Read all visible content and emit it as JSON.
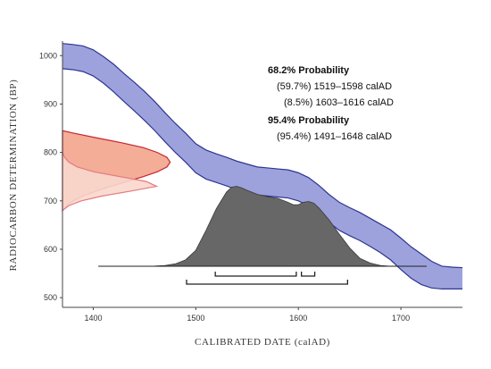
{
  "chart_data": {
    "type": "area",
    "title": "",
    "xlabel": "CALIBRATED DATE (calAD)",
    "ylabel": "RADIOCARBON DETERMINATION (BP)",
    "xlim": [
      1370,
      1760
    ],
    "ylim": [
      480,
      1030
    ],
    "x_ticks": [
      "1400",
      "1500",
      "1600",
      "1700"
    ],
    "y_ticks": [
      "500",
      "600",
      "700",
      "800",
      "900",
      "1000"
    ],
    "calibration_curve": {
      "x": [
        1370,
        1380,
        1390,
        1400,
        1410,
        1420,
        1430,
        1440,
        1450,
        1460,
        1470,
        1480,
        1490,
        1500,
        1510,
        1520,
        1530,
        1540,
        1550,
        1560,
        1570,
        1580,
        1590,
        1600,
        1610,
        1620,
        1630,
        1640,
        1650,
        1660,
        1670,
        1680,
        1690,
        1700,
        1710,
        1720,
        1730,
        1740,
        1750,
        1760
      ],
      "upper": [
        1025,
        1023,
        1020,
        1012,
        998,
        982,
        963,
        945,
        926,
        905,
        882,
        860,
        840,
        818,
        805,
        797,
        790,
        782,
        776,
        770,
        768,
        766,
        764,
        758,
        748,
        732,
        713,
        697,
        686,
        676,
        664,
        652,
        640,
        623,
        605,
        590,
        575,
        565,
        563,
        562
      ],
      "lower": [
        973,
        971,
        967,
        958,
        943,
        925,
        905,
        886,
        866,
        845,
        822,
        800,
        780,
        758,
        745,
        738,
        731,
        723,
        717,
        712,
        710,
        708,
        706,
        700,
        690,
        674,
        655,
        639,
        628,
        618,
        606,
        593,
        578,
        558,
        540,
        527,
        520,
        518,
        518,
        518
      ]
    },
    "radiocarbon_date": {
      "y": [
        680,
        690,
        700,
        710,
        720,
        730,
        740,
        750,
        760,
        770,
        780,
        790,
        800,
        810,
        820,
        830,
        840,
        845
      ],
      "density": [
        0.0,
        0.04,
        0.1,
        0.19,
        0.31,
        0.45,
        0.6,
        0.75,
        0.88,
        0.97,
        1.0,
        0.97,
        0.88,
        0.75,
        0.55,
        0.32,
        0.1,
        0.0
      ],
      "density2": [
        0.0,
        0.06,
        0.18,
        0.38,
        0.65,
        0.9,
        0.8,
        0.55,
        0.3,
        0.14,
        0.06,
        0.02,
        0.0,
        0.0,
        0.0,
        0.0,
        0.0,
        0.0
      ]
    },
    "calibrated_distribution": {
      "x": [
        1405,
        1440,
        1460,
        1470,
        1480,
        1490,
        1500,
        1510,
        1520,
        1530,
        1535,
        1540,
        1545,
        1550,
        1560,
        1570,
        1580,
        1590,
        1595,
        1600,
        1605,
        1610,
        1615,
        1620,
        1630,
        1640,
        1650,
        1660,
        1670,
        1680,
        1690,
        1725
      ],
      "density": [
        0.0,
        0.0,
        0.003,
        0.01,
        0.03,
        0.08,
        0.2,
        0.45,
        0.72,
        0.93,
        0.99,
        1.0,
        0.98,
        0.95,
        0.9,
        0.87,
        0.85,
        0.8,
        0.77,
        0.77,
        0.8,
        0.81,
        0.79,
        0.73,
        0.58,
        0.4,
        0.23,
        0.1,
        0.04,
        0.01,
        0.0,
        0.0
      ]
    },
    "ranges_68": [
      [
        1519,
        1598
      ],
      [
        1603,
        1616
      ]
    ],
    "ranges_95": [
      [
        1491,
        1648
      ]
    ],
    "annotations": {
      "head_68": "68.2% Probability",
      "line_68_a": "(59.7%) 1519–1598 calAD",
      "line_68_b": "(8.5%) 1603–1616 calAD",
      "head_95": "95.4% Probability",
      "line_95_a": "(95.4%) 1491–1648 calAD"
    },
    "colors": {
      "curve_fill": "#9da2dc",
      "curve_edge": "#2d3592",
      "date_fill": "#f3a48c",
      "date_edge": "#c52630",
      "date_fill_light": "#f8d7cc",
      "date_edge_light": "#e47a80",
      "calib_fill": "#676767",
      "calib_edge": "#3a3a3a"
    },
    "grid": false
  }
}
